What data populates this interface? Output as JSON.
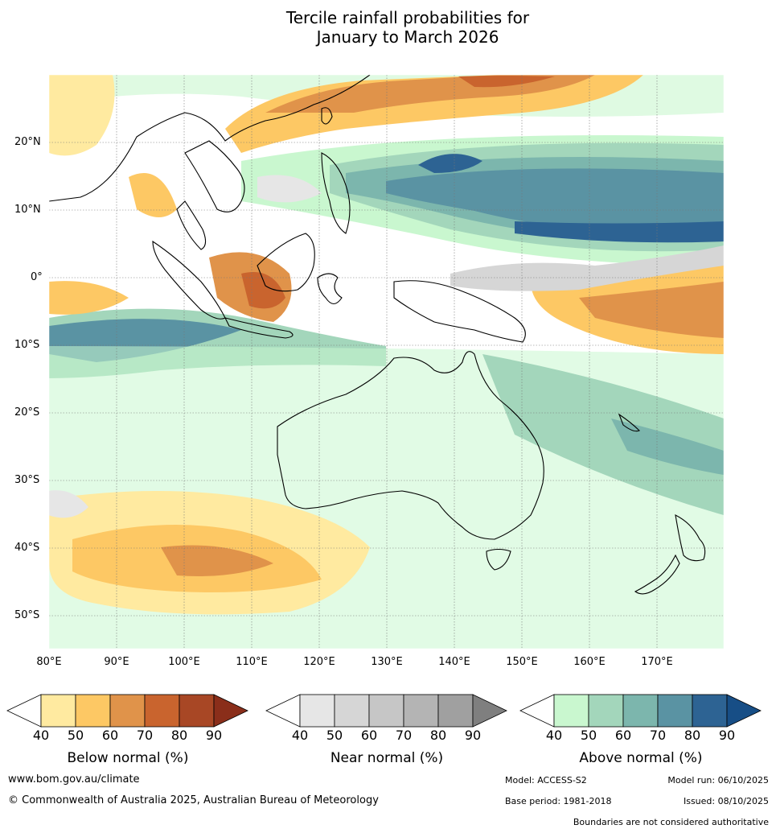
{
  "title": {
    "line1": "Tercile rainfall probabilities for",
    "line2": "January to March 2026"
  },
  "map": {
    "lat_labels": [
      "20°N",
      "10°N",
      "0°",
      "10°S",
      "20°S",
      "30°S",
      "40°S",
      "50°S"
    ],
    "lon_labels": [
      "80°E",
      "90°E",
      "100°E",
      "110°E",
      "120°E",
      "130°E",
      "140°E",
      "150°E",
      "160°E",
      "170°E"
    ]
  },
  "legends": {
    "below": {
      "label": "Below normal (%)",
      "ticks": [
        "40",
        "50",
        "60",
        "70",
        "80",
        "90"
      ],
      "colors": [
        "#ffeaa0",
        "#fdc864",
        "#e0934a",
        "#c9642e",
        "#a84725",
        "#8a2e1a"
      ]
    },
    "near": {
      "label": "Near normal (%)",
      "ticks": [
        "40",
        "50",
        "60",
        "70",
        "80",
        "90"
      ],
      "colors": [
        "#e6e6e6",
        "#d6d6d6",
        "#c6c6c6",
        "#b4b4b4",
        "#a0a0a0",
        "#7f7f7f"
      ]
    },
    "above": {
      "label": "Above normal (%)",
      "ticks": [
        "40",
        "50",
        "60",
        "70",
        "80",
        "90"
      ],
      "colors": [
        "#c9f7cf",
        "#a3d6bb",
        "#7cb6ad",
        "#5a93a3",
        "#2d6393",
        "#174e86"
      ]
    }
  },
  "footer": {
    "website": "www.bom.gov.au/climate",
    "copyright": "© Commonwealth of Australia 2025, Australian Bureau of Meteorology",
    "model": "Model: ACCESS-S2",
    "model_run": "Model run: 06/10/2025",
    "base_period": "Base period: 1981-2018",
    "issued": "Issued: 08/10/2025",
    "disclaimer": "Boundaries are not considered authoritative"
  }
}
